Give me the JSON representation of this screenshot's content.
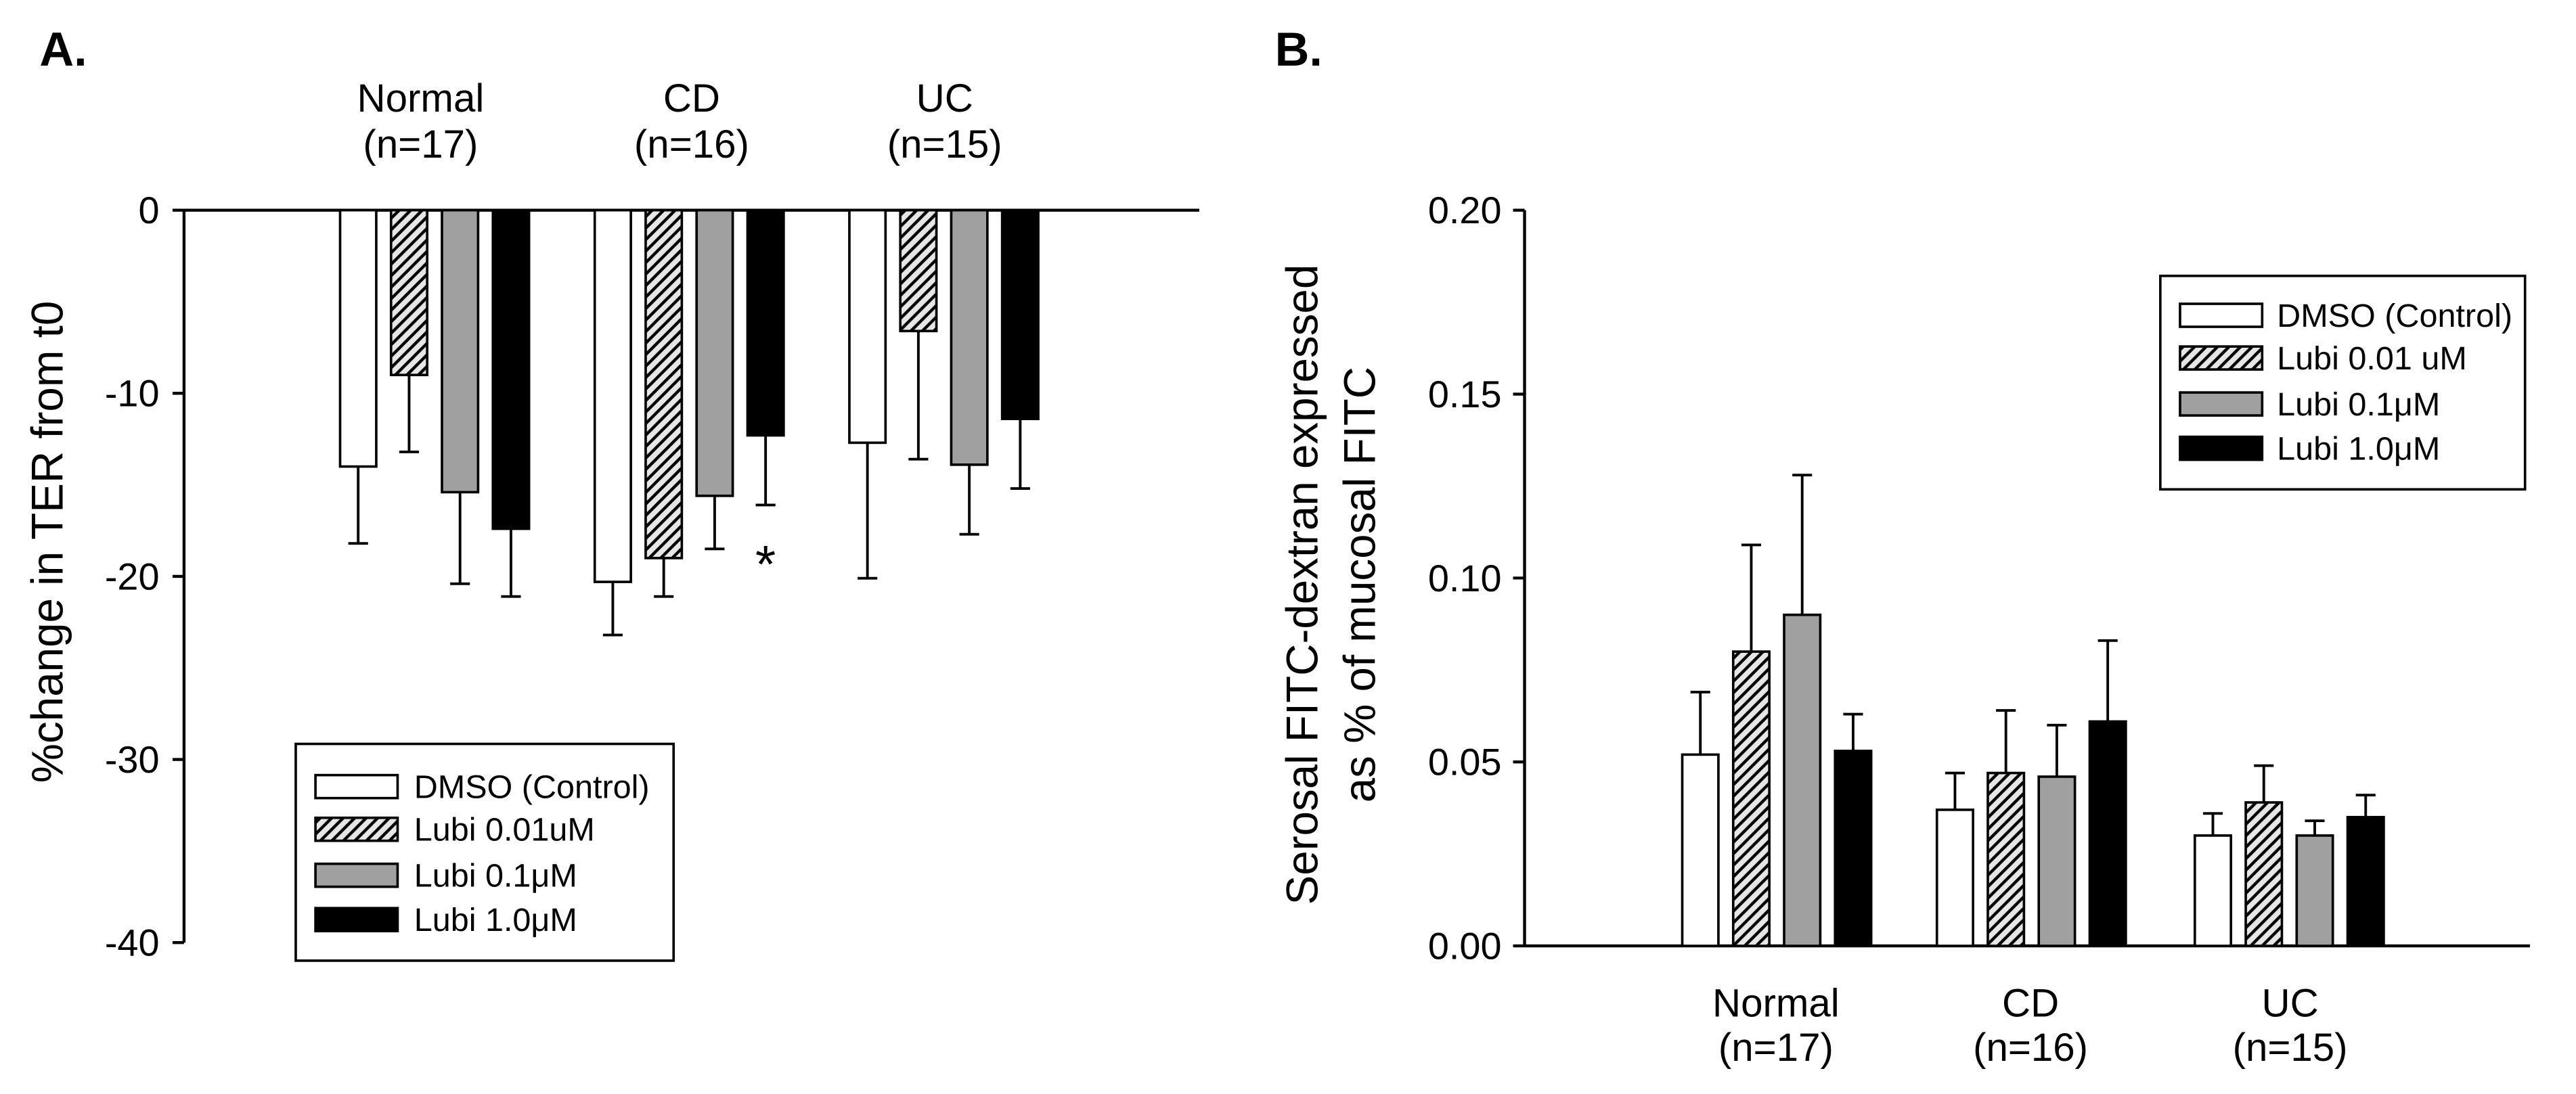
{
  "styles": {
    "background": "#ffffff",
    "ink": "#000000",
    "white_fill": "#ffffff",
    "gray_fill": "#a0a0a0",
    "black_fill": "#000000",
    "hatch_background": "#e6e6e6",
    "hatch_line": "#000000"
  },
  "chart_data": [
    {
      "panel_label": "A.",
      "type": "bar",
      "title": "",
      "xlabel": "",
      "ylabel": "%change in TER from t0",
      "ylim": [
        -40,
        0
      ],
      "yticks": [
        0,
        -10,
        -20,
        -30,
        -40
      ],
      "ytick_labels": [
        "0",
        "-10",
        "-20",
        "-30",
        "-40"
      ],
      "grid": false,
      "categories": [
        "Normal",
        "CD",
        "UC"
      ],
      "category_sublabels": [
        "(n=17)",
        "(n=16)",
        "(n=15)"
      ],
      "category_label_position": "top",
      "legend": {
        "placement": "bottom-left"
      },
      "series": [
        {
          "name": "DMSO (Control)",
          "style": "white",
          "values": [
            -14.0,
            -20.3,
            -12.7
          ],
          "errors": [
            4.2,
            2.9,
            7.4
          ]
        },
        {
          "name": "Lubi 0.01uM",
          "style": "hatched",
          "values": [
            -9.0,
            -19.0,
            -6.6
          ],
          "errors": [
            4.2,
            2.1,
            7.0
          ]
        },
        {
          "name": "Lubi 0.1μM",
          "style": "gray",
          "values": [
            -15.4,
            -15.6,
            -13.9
          ],
          "errors": [
            5.0,
            2.9,
            3.8
          ]
        },
        {
          "name": "Lubi 1.0μM",
          "style": "black",
          "values": [
            -17.4,
            -12.3,
            -11.4
          ],
          "errors": [
            3.7,
            3.8,
            3.8
          ]
        }
      ],
      "annotations": [
        {
          "text": "*",
          "category": "CD",
          "series": "Lubi 1.0μM"
        }
      ]
    },
    {
      "panel_label": "B.",
      "type": "bar",
      "title": "",
      "xlabel": "",
      "ylabel": [
        "Serosal FITC-dextran expressed",
        "as % of mucosal FITC"
      ],
      "ylim": [
        0,
        0.2
      ],
      "yticks": [
        0,
        0.05,
        0.1,
        0.15,
        0.2
      ],
      "ytick_labels": [
        "0.00",
        "0.05",
        "0.10",
        "0.15",
        "0.20"
      ],
      "grid": false,
      "categories": [
        "Normal",
        "CD",
        "UC"
      ],
      "category_sublabels": [
        "(n=17)",
        "(n=16)",
        "(n=15)"
      ],
      "category_label_position": "bottom",
      "legend": {
        "placement": "top-right"
      },
      "series": [
        {
          "name": "DMSO (Control)",
          "style": "white",
          "values": [
            0.052,
            0.037,
            0.03
          ],
          "errors": [
            0.017,
            0.01,
            0.006
          ]
        },
        {
          "name": "Lubi 0.01 uM",
          "style": "hatched",
          "values": [
            0.08,
            0.047,
            0.039
          ],
          "errors": [
            0.029,
            0.017,
            0.01
          ]
        },
        {
          "name": "Lubi 0.1μM",
          "style": "gray",
          "values": [
            0.09,
            0.046,
            0.03
          ],
          "errors": [
            0.038,
            0.014,
            0.004
          ]
        },
        {
          "name": "Lubi 1.0μM",
          "style": "black",
          "values": [
            0.053,
            0.061,
            0.035
          ],
          "errors": [
            0.01,
            0.022,
            0.006
          ]
        }
      ],
      "annotations": []
    }
  ]
}
